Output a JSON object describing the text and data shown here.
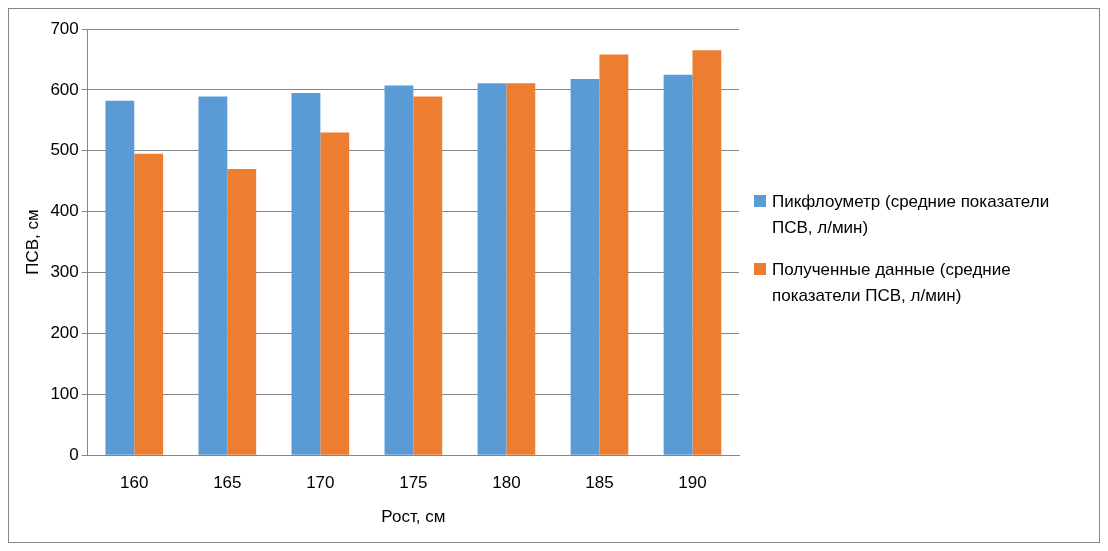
{
  "chart_data": {
    "type": "bar",
    "xlabel": "Рост, см",
    "ylabel": "ПСВ, см",
    "categories": [
      "160",
      "165",
      "170",
      "175",
      "180",
      "185",
      "190"
    ],
    "series": [
      {
        "name": "Пикфлоуметр (средние показатели ПСВ, л/мин)",
        "color": "#5b9bd5",
        "values": [
          582,
          589,
          595,
          607,
          611,
          618,
          625
        ]
      },
      {
        "name": "Полученные данные (средние показатели ПСВ, л/мин)",
        "color": "#ed7d31",
        "values": [
          495,
          470,
          530,
          589,
          611,
          658,
          665
        ]
      }
    ],
    "ylim": [
      0,
      700
    ],
    "yticks": [
      0,
      100,
      200,
      300,
      400,
      500,
      600,
      700
    ],
    "grid": "y",
    "legend": "right"
  }
}
